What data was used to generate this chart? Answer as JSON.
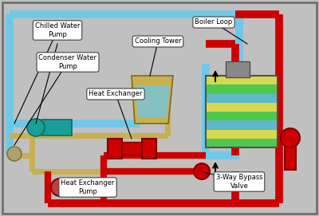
{
  "bg_color": "#c0c0c0",
  "border_color": "#606060",
  "labels": {
    "chilled_water_pump": "Chilled Water\nPump",
    "condenser_water_pump": "Condenser Water\nPump",
    "heat_exchanger": "Heat Exchanger",
    "heat_exchanger_pump": "Heat Exchanger\nPump",
    "cooling_tower": "Cooling Tower",
    "boiler_loop": "Boiler Loop",
    "bypass_valve": "3-Way Bypass\nValve"
  },
  "pipe_blue_color": "#70c8e8",
  "pipe_red_color": "#cc0000",
  "pipe_yellow_color": "#c8b050",
  "pump_teal_color": "#18a098",
  "callout_bg": "#ffffff",
  "callout_border": "#404040",
  "boiler_stripes": [
    "#d8d850",
    "#50c850",
    "#60b8c8",
    "#d8d850",
    "#50c850",
    "#60b8c8",
    "#d8d850",
    "#50c850"
  ],
  "cooling_tower_color": "#c8b050",
  "gray_device_color": "#888888"
}
